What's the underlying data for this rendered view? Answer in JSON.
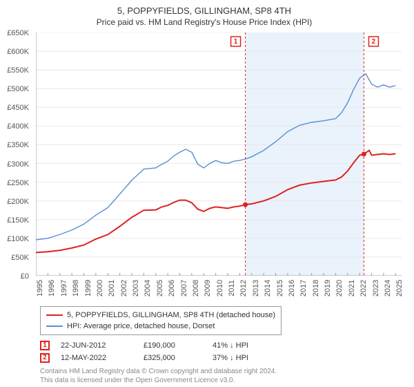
{
  "title": "5, POPPYFIELDS, GILLINGHAM, SP8 4TH",
  "subtitle": "Price paid vs. HM Land Registry's House Price Index (HPI)",
  "chart": {
    "type": "line",
    "background_color": "#ffffff",
    "grid_color": "#e8e8e8",
    "axis_color": "#999999",
    "shaded_region_color": "#eaf2fb",
    "shaded_region_x": [
      2012.47,
      2022.36
    ],
    "xlim": [
      1995,
      2025.5
    ],
    "ylim": [
      0,
      650
    ],
    "y_unit": "£K",
    "ytick_step": 50,
    "yticks": [
      "£0",
      "£50K",
      "£100K",
      "£150K",
      "£200K",
      "£250K",
      "£300K",
      "£350K",
      "£400K",
      "£450K",
      "£500K",
      "£550K",
      "£600K",
      "£650K"
    ],
    "xticks": [
      1995,
      1996,
      1997,
      1998,
      1999,
      2000,
      2001,
      2002,
      2003,
      2004,
      2005,
      2006,
      2007,
      2008,
      2009,
      2010,
      2011,
      2012,
      2013,
      2014,
      2015,
      2016,
      2017,
      2018,
      2019,
      2020,
      2021,
      2022,
      2023,
      2024,
      2025
    ],
    "title_fontsize": 13,
    "label_fontsize": 11,
    "series": [
      {
        "name": "property",
        "label": "5, POPPYFIELDS, GILLINGHAM, SP8 4TH (detached house)",
        "color": "#e02020",
        "line_width": 2,
        "points": [
          [
            1995,
            62
          ],
          [
            1996,
            64
          ],
          [
            1997,
            68
          ],
          [
            1998,
            74
          ],
          [
            1999,
            82
          ],
          [
            2000,
            98
          ],
          [
            2001,
            110
          ],
          [
            2002,
            132
          ],
          [
            2003,
            156
          ],
          [
            2004,
            175
          ],
          [
            2005,
            176
          ],
          [
            2005.5,
            184
          ],
          [
            2006,
            188
          ],
          [
            2006.5,
            196
          ],
          [
            2007,
            202
          ],
          [
            2007.5,
            202
          ],
          [
            2008,
            195
          ],
          [
            2008.5,
            178
          ],
          [
            2009,
            172
          ],
          [
            2009.5,
            180
          ],
          [
            2010,
            184
          ],
          [
            2010.5,
            182
          ],
          [
            2011,
            180
          ],
          [
            2011.5,
            184
          ],
          [
            2012,
            186
          ],
          [
            2012.47,
            190
          ],
          [
            2013,
            192
          ],
          [
            2014,
            200
          ],
          [
            2015,
            212
          ],
          [
            2016,
            230
          ],
          [
            2017,
            242
          ],
          [
            2018,
            248
          ],
          [
            2019,
            252
          ],
          [
            2020,
            256
          ],
          [
            2020.5,
            264
          ],
          [
            2021,
            280
          ],
          [
            2021.5,
            302
          ],
          [
            2022,
            322
          ],
          [
            2022.36,
            325
          ],
          [
            2022.8,
            335
          ],
          [
            2023,
            322
          ],
          [
            2023.5,
            324
          ],
          [
            2024,
            326
          ],
          [
            2024.5,
            324
          ],
          [
            2025,
            326
          ]
        ]
      },
      {
        "name": "hpi",
        "label": "HPI: Average price, detached house, Dorset",
        "color": "#5b8dd6",
        "line_width": 1.4,
        "points": [
          [
            1995,
            96
          ],
          [
            1996,
            100
          ],
          [
            1997,
            110
          ],
          [
            1998,
            122
          ],
          [
            1999,
            138
          ],
          [
            2000,
            162
          ],
          [
            2001,
            182
          ],
          [
            2002,
            218
          ],
          [
            2003,
            255
          ],
          [
            2004,
            285
          ],
          [
            2005,
            288
          ],
          [
            2005.5,
            298
          ],
          [
            2006,
            306
          ],
          [
            2006.5,
            320
          ],
          [
            2007,
            330
          ],
          [
            2007.5,
            338
          ],
          [
            2008,
            330
          ],
          [
            2008.5,
            298
          ],
          [
            2009,
            288
          ],
          [
            2009.5,
            300
          ],
          [
            2010,
            308
          ],
          [
            2010.5,
            302
          ],
          [
            2011,
            300
          ],
          [
            2011.5,
            306
          ],
          [
            2012,
            308
          ],
          [
            2012.5,
            312
          ],
          [
            2013,
            318
          ],
          [
            2014,
            335
          ],
          [
            2015,
            358
          ],
          [
            2016,
            385
          ],
          [
            2017,
            402
          ],
          [
            2018,
            410
          ],
          [
            2019,
            414
          ],
          [
            2020,
            420
          ],
          [
            2020.5,
            436
          ],
          [
            2021,
            462
          ],
          [
            2021.5,
            498
          ],
          [
            2022,
            528
          ],
          [
            2022.5,
            540
          ],
          [
            2023,
            512
          ],
          [
            2023.5,
            504
          ],
          [
            2024,
            510
          ],
          [
            2024.5,
            504
          ],
          [
            2025,
            508
          ]
        ]
      }
    ],
    "markers": [
      {
        "n": "1",
        "x": 2012.47,
        "y": 190,
        "label_offset_x": -14
      },
      {
        "n": "2",
        "x": 2022.36,
        "y": 325,
        "label_offset_x": 14
      }
    ],
    "marker_dot_color": "#e02020",
    "marker_box_stroke": "#e02020"
  },
  "legend": {
    "border_color": "#999999",
    "fontsize": 11,
    "rows": [
      {
        "color": "#e02020",
        "label": "5, POPPYFIELDS, GILLINGHAM, SP8 4TH (detached house)"
      },
      {
        "color": "#5b8dd6",
        "label": "HPI: Average price, detached house, Dorset"
      }
    ]
  },
  "transactions": [
    {
      "n": "1",
      "date": "22-JUN-2012",
      "price": "£190,000",
      "delta": "41% ↓ HPI"
    },
    {
      "n": "2",
      "date": "12-MAY-2022",
      "price": "£325,000",
      "delta": "37% ↓ HPI"
    }
  ],
  "footer_line1": "Contains HM Land Registry data © Crown copyright and database right 2024.",
  "footer_line2": "This data is licensed under the Open Government Licence v3.0."
}
